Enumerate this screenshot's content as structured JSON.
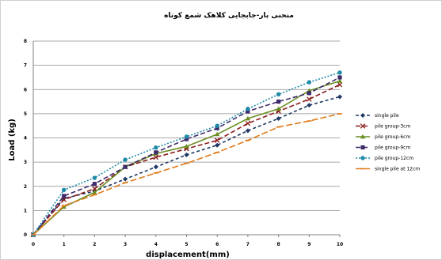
{
  "chart_data": {
    "type": "line",
    "title": "منحنی بار-جابجایی کلاهک شمع کوتاه",
    "xlabel": "displacement(mm)",
    "ylabel": "Load (kg)",
    "x": [
      0,
      1,
      2,
      3,
      4,
      5,
      6,
      7,
      8,
      9,
      10
    ],
    "x_ticks": [
      "0",
      "1",
      "2",
      "3",
      "4",
      "5",
      "6",
      "7",
      "8",
      "9",
      "10"
    ],
    "y_ticks": [
      "0",
      "1",
      "2",
      "3",
      "4",
      "5",
      "6",
      "7",
      "8"
    ],
    "xlim": [
      0,
      10
    ],
    "ylim": [
      0,
      8
    ],
    "grid": "horizontal",
    "legend_position": "right",
    "series": [
      {
        "name": "single pile",
        "color": "#1f3864",
        "dash": "4,3",
        "marker": "diamond",
        "values": [
          0,
          1.5,
          1.8,
          2.3,
          2.8,
          3.3,
          3.7,
          4.3,
          4.8,
          5.35,
          5.7
        ]
      },
      {
        "name": "pile group-3cm",
        "color": "#8b1a1a",
        "dash": "6,3",
        "marker": "x",
        "values": [
          0,
          1.45,
          1.9,
          2.8,
          3.2,
          3.55,
          3.9,
          4.6,
          5.1,
          5.6,
          6.2
        ]
      },
      {
        "name": "pile group-6cm",
        "color": "#6b8e23",
        "dash": "none",
        "marker": "triangle",
        "values": [
          0,
          1.15,
          1.75,
          2.8,
          3.35,
          3.65,
          4.15,
          4.8,
          5.2,
          5.95,
          6.35
        ]
      },
      {
        "name": "pile group-9cm",
        "color": "#3d2a6b",
        "dash": "6,3",
        "marker": "square",
        "values": [
          0,
          1.6,
          2.1,
          2.8,
          3.4,
          3.95,
          4.4,
          5.1,
          5.5,
          5.85,
          6.5
        ]
      },
      {
        "name": "pile group-12cm",
        "color": "#1f8aa8",
        "dash": "2,2",
        "marker": "circle",
        "values": [
          0,
          1.85,
          2.35,
          3.1,
          3.6,
          4.05,
          4.5,
          5.2,
          5.8,
          6.3,
          6.7
        ]
      },
      {
        "name": "single pile at 12cm",
        "color": "#e07b1a",
        "dash": "8,3",
        "marker": "dash",
        "values": [
          0,
          1.2,
          1.65,
          2.15,
          2.55,
          2.95,
          3.4,
          3.9,
          4.45,
          4.7,
          5.0
        ]
      }
    ]
  }
}
